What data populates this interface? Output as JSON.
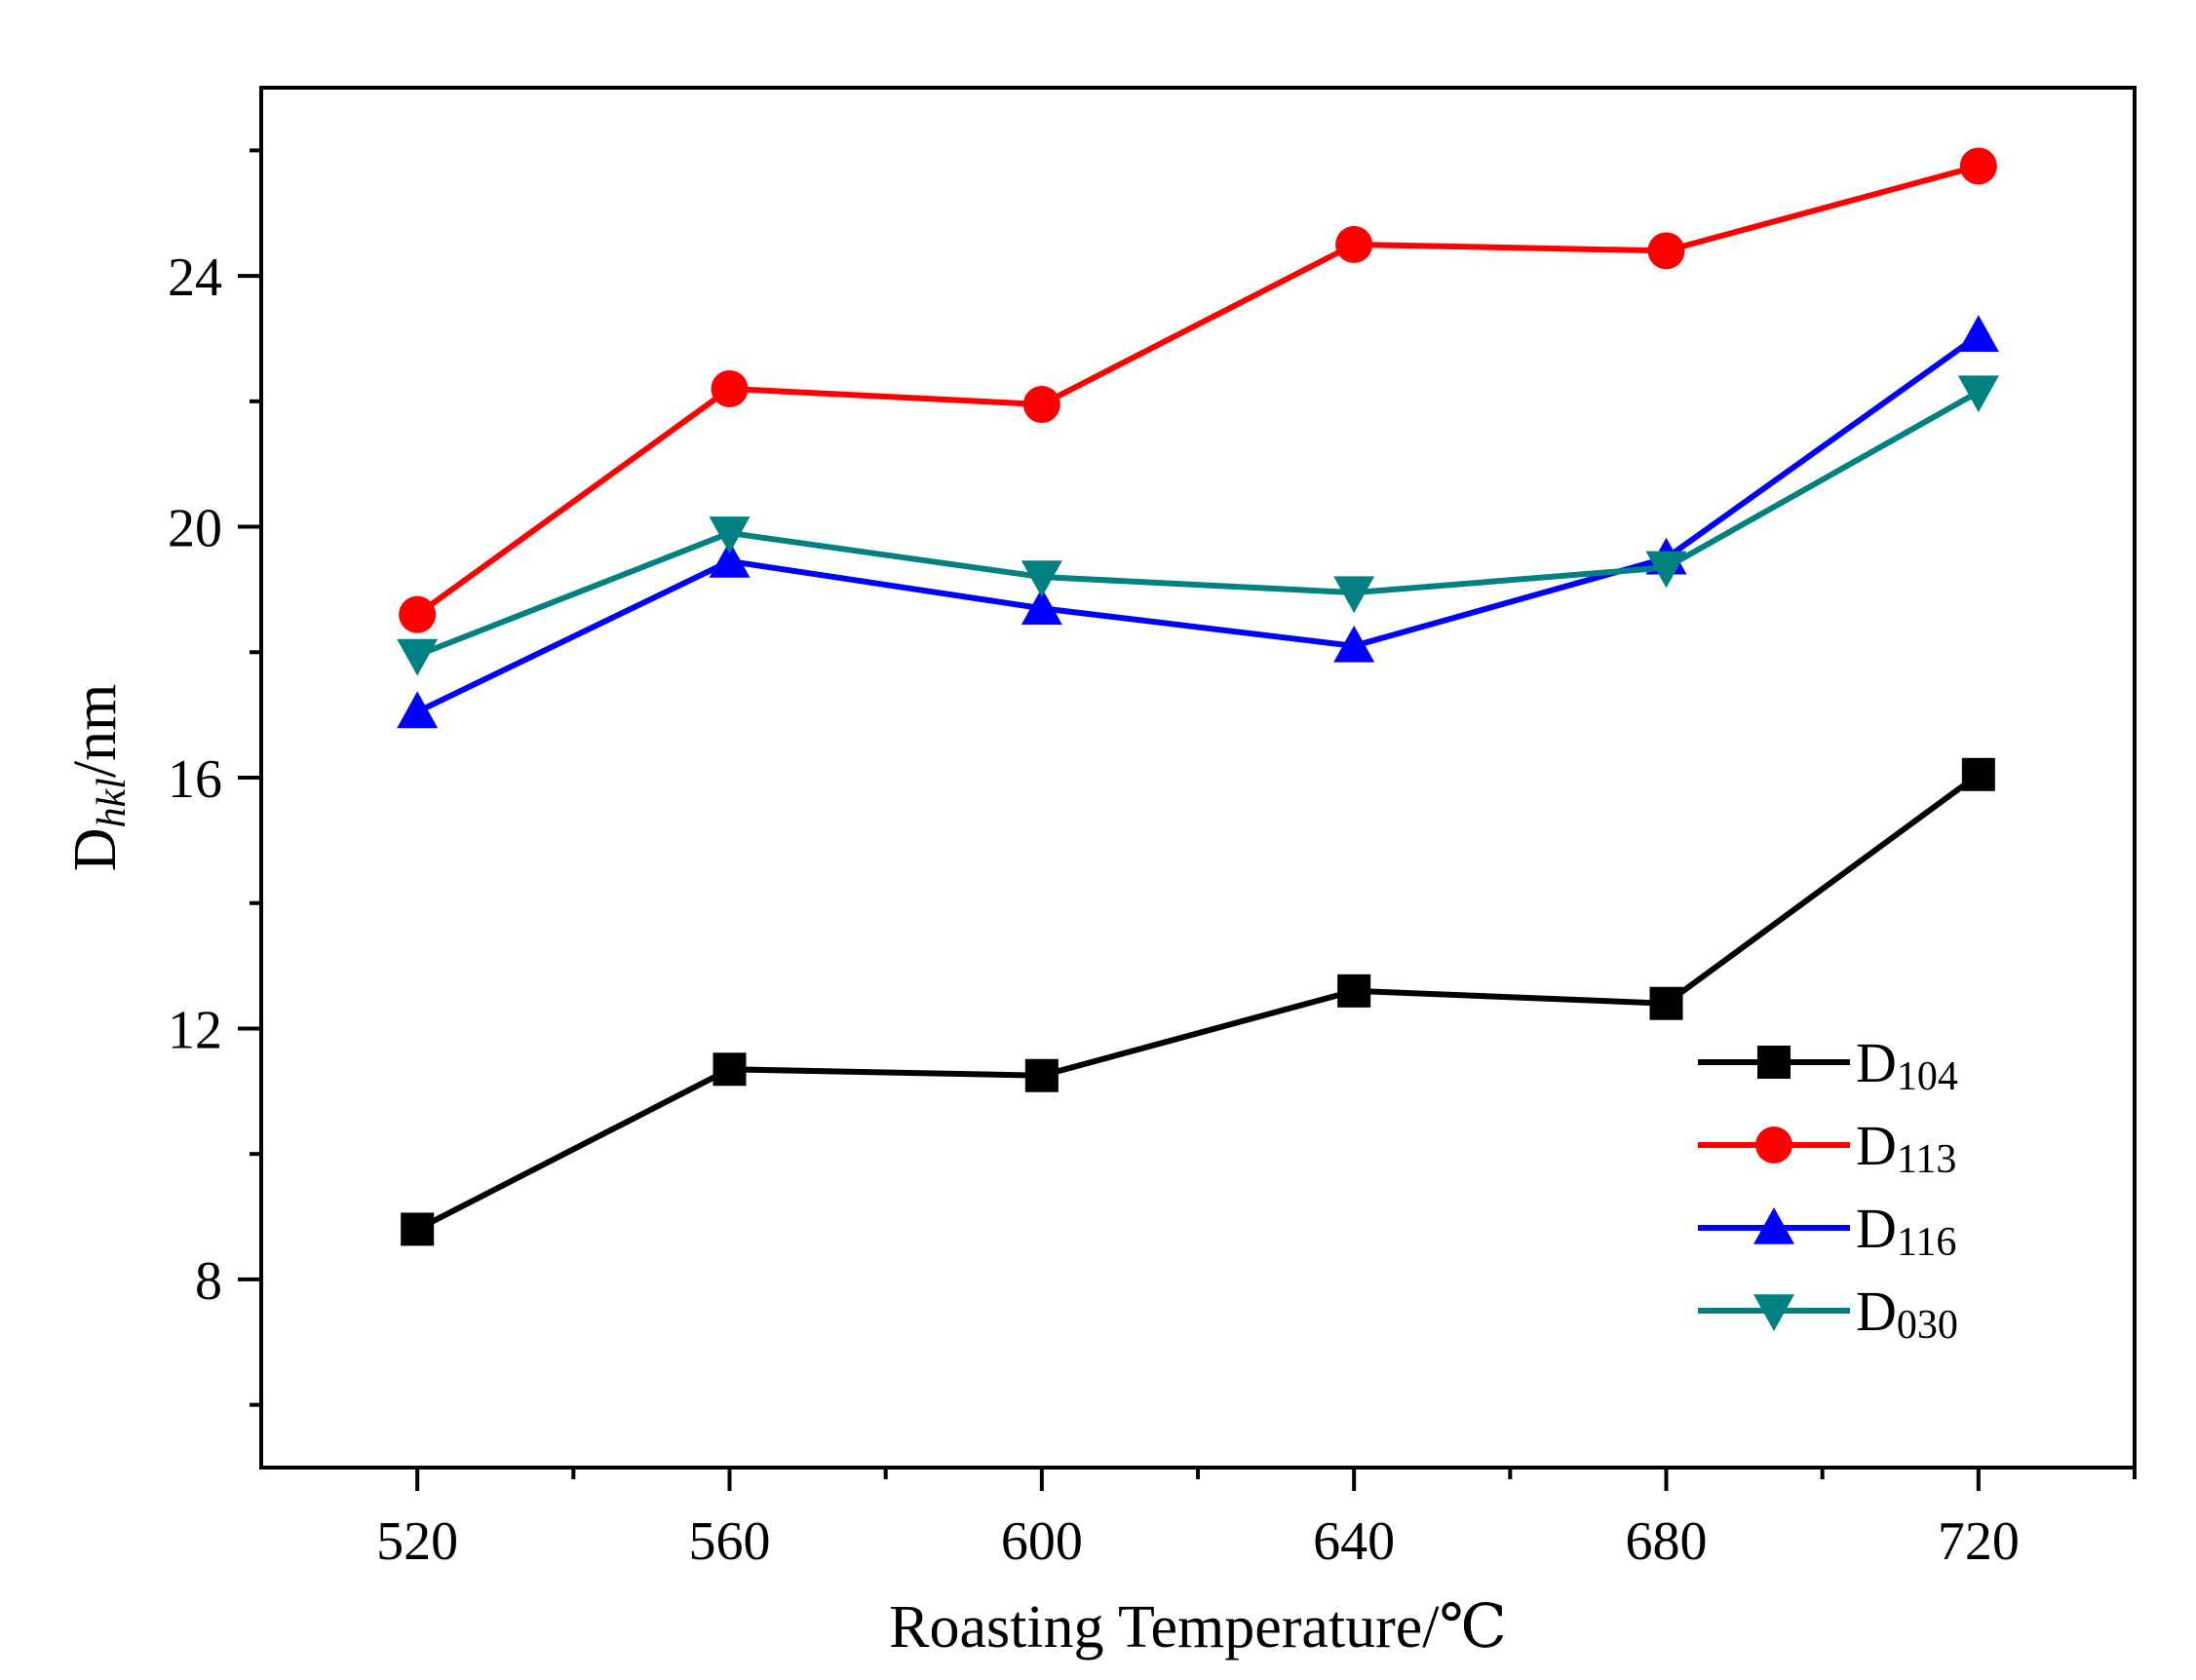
{
  "chart_data": {
    "type": "line",
    "title": "",
    "xlabel": "Roasting Temperature/℃",
    "ylabel": {
      "main": "D",
      "sub": "hkl",
      "unit": "/nm"
    },
    "x": [
      520,
      560,
      600,
      640,
      680,
      720
    ],
    "xlim": [
      500,
      740
    ],
    "ylim": [
      5,
      27
    ],
    "xticks": [
      "520",
      "560",
      "600",
      "640",
      "680",
      "720"
    ],
    "yticks": [
      "8",
      "12",
      "16",
      "20",
      "24"
    ],
    "legend_position": "lower-right",
    "series": [
      {
        "name": "D104",
        "name_main": "D",
        "name_sub": "104",
        "color": "#000000",
        "marker": "square",
        "values": [
          8.8,
          11.35,
          11.25,
          12.6,
          12.4,
          16.05
        ]
      },
      {
        "name": "D113",
        "name_main": "D",
        "name_sub": "113",
        "color": "#ff0000",
        "marker": "circle",
        "values": [
          18.6,
          22.2,
          21.95,
          24.5,
          24.4,
          25.75
        ]
      },
      {
        "name": "D116",
        "name_main": "D",
        "name_sub": "116",
        "color": "#0000ff",
        "marker": "triangle-up",
        "values": [
          17.05,
          19.45,
          18.7,
          18.1,
          19.5,
          23.05
        ]
      },
      {
        "name": "D030",
        "name_main": "D",
        "name_sub": "030",
        "color": "#008080",
        "marker": "triangle-down",
        "values": [
          17.95,
          19.9,
          19.2,
          18.95,
          19.35,
          22.15
        ]
      }
    ]
  }
}
